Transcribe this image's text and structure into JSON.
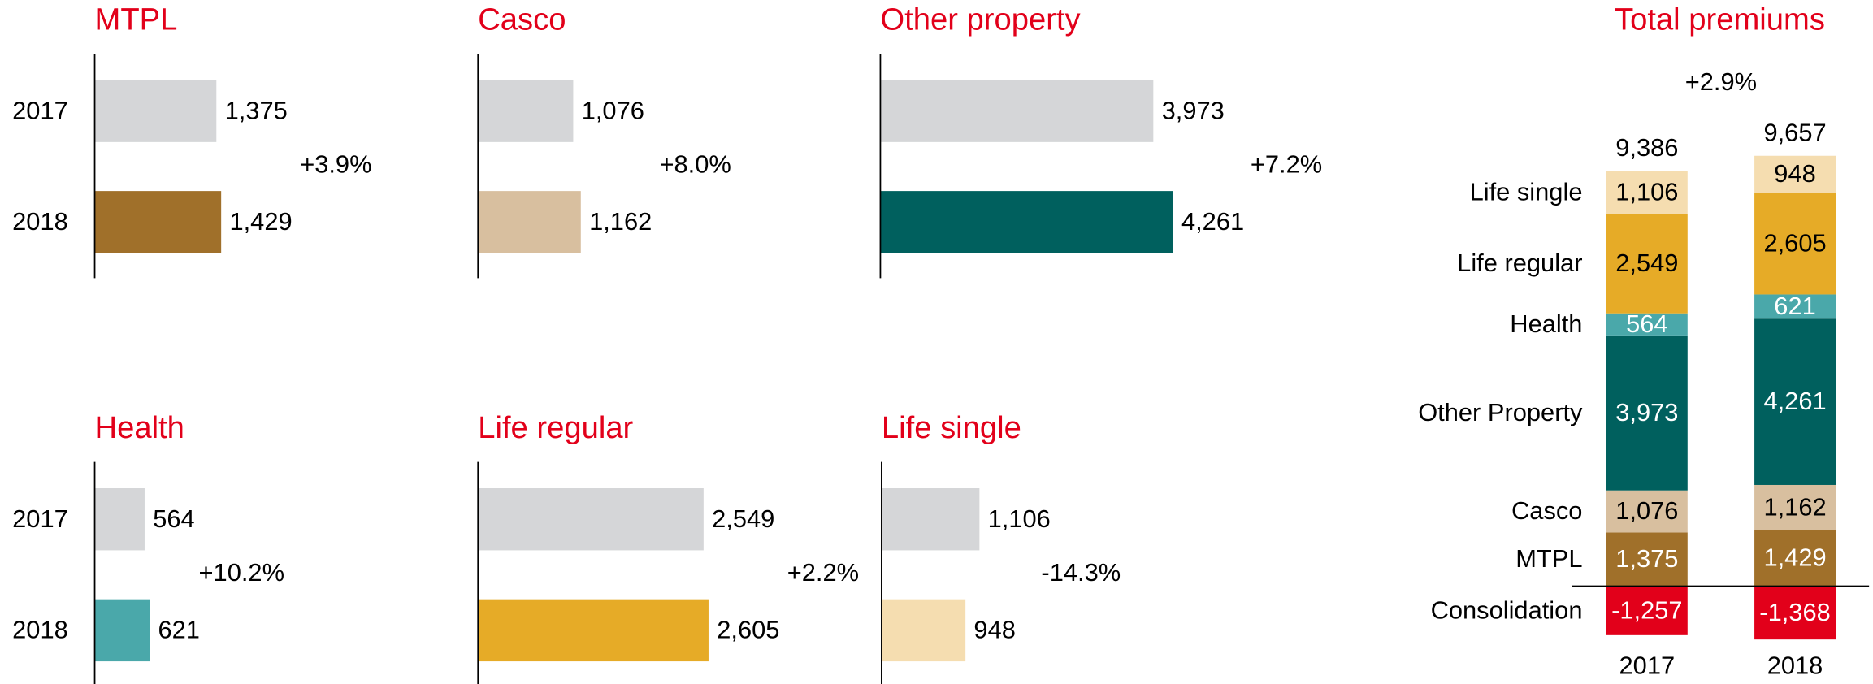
{
  "chart_data": [
    {
      "type": "bar",
      "orientation": "horizontal",
      "title": "MTPL",
      "categories": [
        "2017",
        "2018"
      ],
      "values": [
        1375,
        1429
      ],
      "value_labels": [
        "1,375",
        "1,429"
      ],
      "colors": [
        "#d5d6d8",
        "#a0702a"
      ],
      "xlim": [
        0,
        3400
      ],
      "annotation": "+3.9%"
    },
    {
      "type": "bar",
      "orientation": "horizontal",
      "title": "Casco",
      "values": [
        1076,
        1162
      ],
      "value_labels": [
        "1,076",
        "1,162"
      ],
      "colors": [
        "#d5d6d8",
        "#d8bf9f"
      ],
      "xlim": [
        0,
        3400
      ],
      "annotation": "+8.0%"
    },
    {
      "type": "bar",
      "orientation": "horizontal",
      "title": "Other property",
      "values": [
        3973,
        4261
      ],
      "value_labels": [
        "3,973",
        "4,261"
      ],
      "colors": [
        "#d5d6d8",
        "#00605e"
      ],
      "xlim": [
        0,
        4380
      ],
      "annotation": "+7.2%"
    },
    {
      "type": "bar",
      "orientation": "horizontal",
      "title": "Health",
      "categories": [
        "2017",
        "2018"
      ],
      "values": [
        564,
        621
      ],
      "value_labels": [
        "564",
        "621"
      ],
      "colors": [
        "#d5d6d8",
        "#4aa8aa"
      ],
      "xlim": [
        0,
        3400
      ],
      "annotation": "+10.2%"
    },
    {
      "type": "bar",
      "orientation": "horizontal",
      "title": "Life regular",
      "values": [
        2549,
        2605
      ],
      "value_labels": [
        "2,549",
        "2,605"
      ],
      "colors": [
        "#d5d6d8",
        "#e6ab27"
      ],
      "xlim": [
        0,
        3400
      ],
      "annotation": "+2.2%"
    },
    {
      "type": "bar",
      "orientation": "horizontal",
      "title": "Life single",
      "values": [
        1106,
        948
      ],
      "value_labels": [
        "1,106",
        "948"
      ],
      "colors": [
        "#d5d6d8",
        "#f5ddb0"
      ],
      "xlim": [
        0,
        3400
      ],
      "annotation": "-14.3%"
    },
    {
      "type": "stacked_bar",
      "title": "Total premiums",
      "categories": [
        "2017",
        "2018"
      ],
      "annotation": "+2.9%",
      "ylim": [
        -1500,
        11500
      ],
      "totals": [
        9386,
        9657
      ],
      "total_labels": [
        "9,386",
        "9,657"
      ],
      "series": [
        {
          "name": "MTPL",
          "color": "#a0702a",
          "label_color": "#ffffff",
          "values": [
            1375,
            1429
          ],
          "value_labels": [
            "1,375",
            "1,429"
          ]
        },
        {
          "name": "Casco",
          "color": "#d8bf9f",
          "label_color": "#000000",
          "values": [
            1076,
            1162
          ],
          "value_labels": [
            "1,076",
            "1,162"
          ]
        },
        {
          "name": "Other Property",
          "color": "#00605e",
          "label_color": "#ffffff",
          "values": [
            3973,
            4261
          ],
          "value_labels": [
            "3,973",
            "4,261"
          ]
        },
        {
          "name": "Health",
          "color": "#4aa8aa",
          "label_color": "#ffffff",
          "values": [
            564,
            621
          ],
          "value_labels": [
            "564",
            "621"
          ]
        },
        {
          "name": "Life regular",
          "color": "#e6ab27",
          "label_color": "#000000",
          "values": [
            2549,
            2605
          ],
          "value_labels": [
            "2,549",
            "2,605"
          ]
        },
        {
          "name": "Life single",
          "color": "#f5ddb0",
          "label_color": "#000000",
          "values": [
            1106,
            948
          ],
          "value_labels": [
            "1,106",
            "948"
          ]
        },
        {
          "name": "Consolidation",
          "color": "#e2001a",
          "label_color": "#ffffff",
          "values": [
            -1257,
            -1368
          ],
          "value_labels": [
            "-1,257",
            "-1,368"
          ]
        }
      ]
    }
  ]
}
